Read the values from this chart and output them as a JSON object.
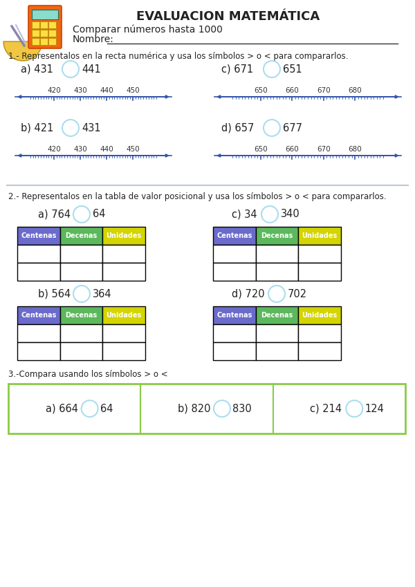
{
  "title": "EVALUACION MATEMÁTICA",
  "subtitle": "Comparar números hasta 1000",
  "nombre_label": "Nombre:",
  "bg_color": "#ffffff",
  "section1_label": "1.- Representalos en la recta numérica y usa los símbolos > o < para compararlos.",
  "section2_label": "2.- Representalos en la tabla de valor posicional y usa los símbolos > o < para compararlos.",
  "section3_label": "3.-Compara usando los símbolos > o <",
  "table_headers": [
    "Centenas",
    "Decenas",
    "Unidades"
  ],
  "header_colors": [
    "#6b6bcc",
    "#5cb85c",
    "#d4d400"
  ],
  "circle_color": "#aaddee",
  "arrow_color": "#3355aa",
  "line_color": "#3355aa",
  "sep_line_color": "#aabbcc",
  "section3_border_color": "#88cc44",
  "text_color": "#222222"
}
